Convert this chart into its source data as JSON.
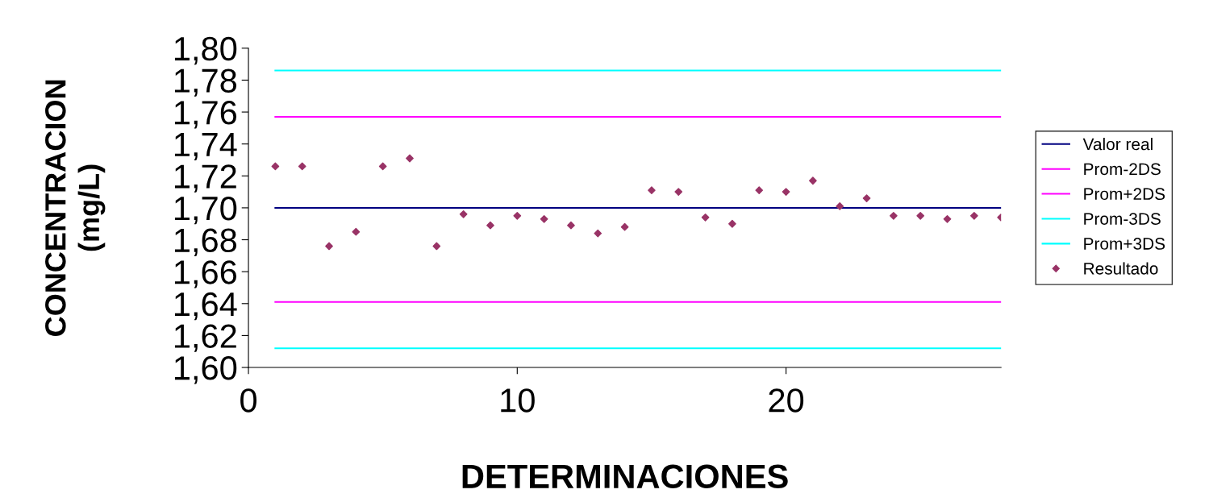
{
  "chart_data": {
    "type": "line",
    "xlabel": "DETERMINACIONES",
    "ylabel": "CONCENTRACION\n(mg/L)",
    "xlim": [
      0,
      28
    ],
    "xticks": [
      0,
      10,
      20
    ],
    "ylim": [
      1.6,
      1.8
    ],
    "yticks": [
      {
        "value": 1.6,
        "label": "1,60"
      },
      {
        "value": 1.62,
        "label": "1,62"
      },
      {
        "value": 1.64,
        "label": "1,64"
      },
      {
        "value": 1.66,
        "label": "1,66"
      },
      {
        "value": 1.68,
        "label": "1,68"
      },
      {
        "value": 1.7,
        "label": "1,70"
      },
      {
        "value": 1.72,
        "label": "1,72"
      },
      {
        "value": 1.74,
        "label": "1,74"
      },
      {
        "value": 1.76,
        "label": "1,76"
      },
      {
        "value": 1.78,
        "label": "1,78"
      },
      {
        "value": 1.8,
        "label": "1,80"
      }
    ],
    "grid": false,
    "legend": "right",
    "series": [
      {
        "name": "Valor real",
        "color": "#000080",
        "x": [
          1,
          28
        ],
        "values": [
          1.7,
          1.7
        ]
      },
      {
        "name": "Prom-2DS",
        "color": "#ff00ff",
        "x": [
          1,
          28
        ],
        "values": [
          1.641,
          1.641
        ]
      },
      {
        "name": "Prom+2DS",
        "color": "#ff00ff",
        "x": [
          1,
          28
        ],
        "values": [
          1.757,
          1.757
        ]
      },
      {
        "name": "Prom-3DS",
        "color": "#00ffff",
        "x": [
          1,
          28
        ],
        "values": [
          1.612,
          1.612
        ]
      },
      {
        "name": "Prom+3DS",
        "color": "#00ffff",
        "x": [
          1,
          28
        ],
        "values": [
          1.786,
          1.786
        ]
      },
      {
        "name": "Resultado",
        "type": "scatter",
        "marker": "diamond",
        "color": "#993366",
        "x": [
          1,
          2,
          3,
          4,
          5,
          6,
          7,
          8,
          9,
          10,
          11,
          12,
          13,
          14,
          15,
          16,
          17,
          18,
          19,
          20,
          21,
          22,
          23,
          24,
          25,
          26,
          27,
          28
        ],
        "values": [
          1.726,
          1.726,
          1.676,
          1.685,
          1.726,
          1.731,
          1.676,
          1.696,
          1.689,
          1.695,
          1.693,
          1.689,
          1.684,
          1.688,
          1.711,
          1.71,
          1.694,
          1.69,
          1.711,
          1.71,
          1.717,
          1.701,
          1.706,
          1.695,
          1.695,
          1.693,
          1.695,
          1.694
        ]
      }
    ]
  }
}
